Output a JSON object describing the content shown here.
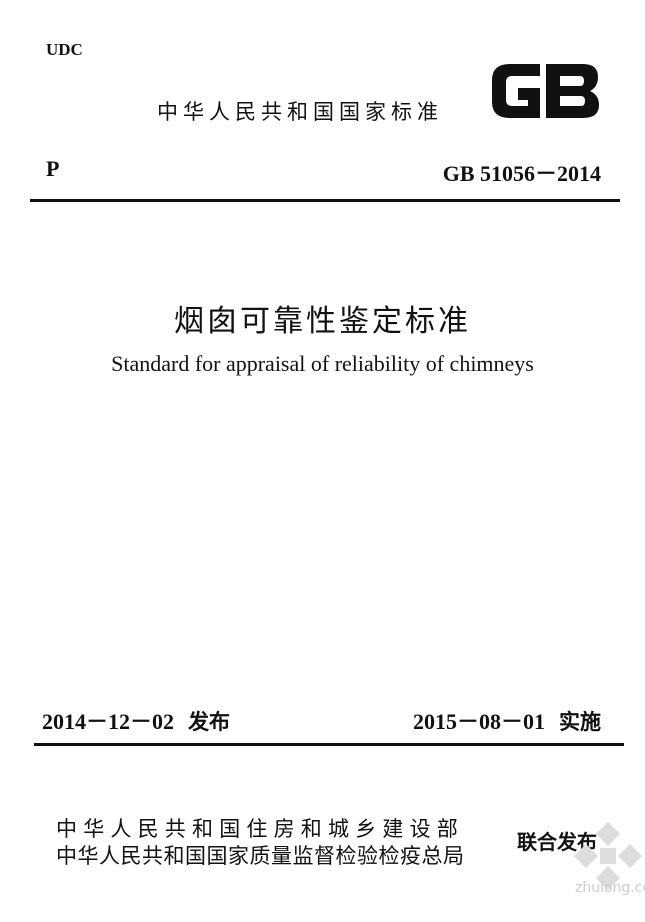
{
  "header": {
    "udc": "UDC",
    "national_standard": "中华人民共和国国家标准",
    "logo_text": "GB",
    "category": "P",
    "standard_code": "GB 51056－2014"
  },
  "title": {
    "chinese": "烟囱可靠性鉴定标准",
    "english": "Standard for appraisal of reliability of chimneys"
  },
  "dates": {
    "issue_date": "2014－12－02",
    "issue_label": "发布",
    "implement_date": "2015－08－01",
    "implement_label": "实施"
  },
  "publishers": {
    "org1": "中华人民共和国住房和城乡建设部",
    "org2": "中华人民共和国国家质量监督检验检疫总局",
    "joint_label": "联合发布"
  },
  "watermark": {
    "text": "zhulong.com"
  }
}
